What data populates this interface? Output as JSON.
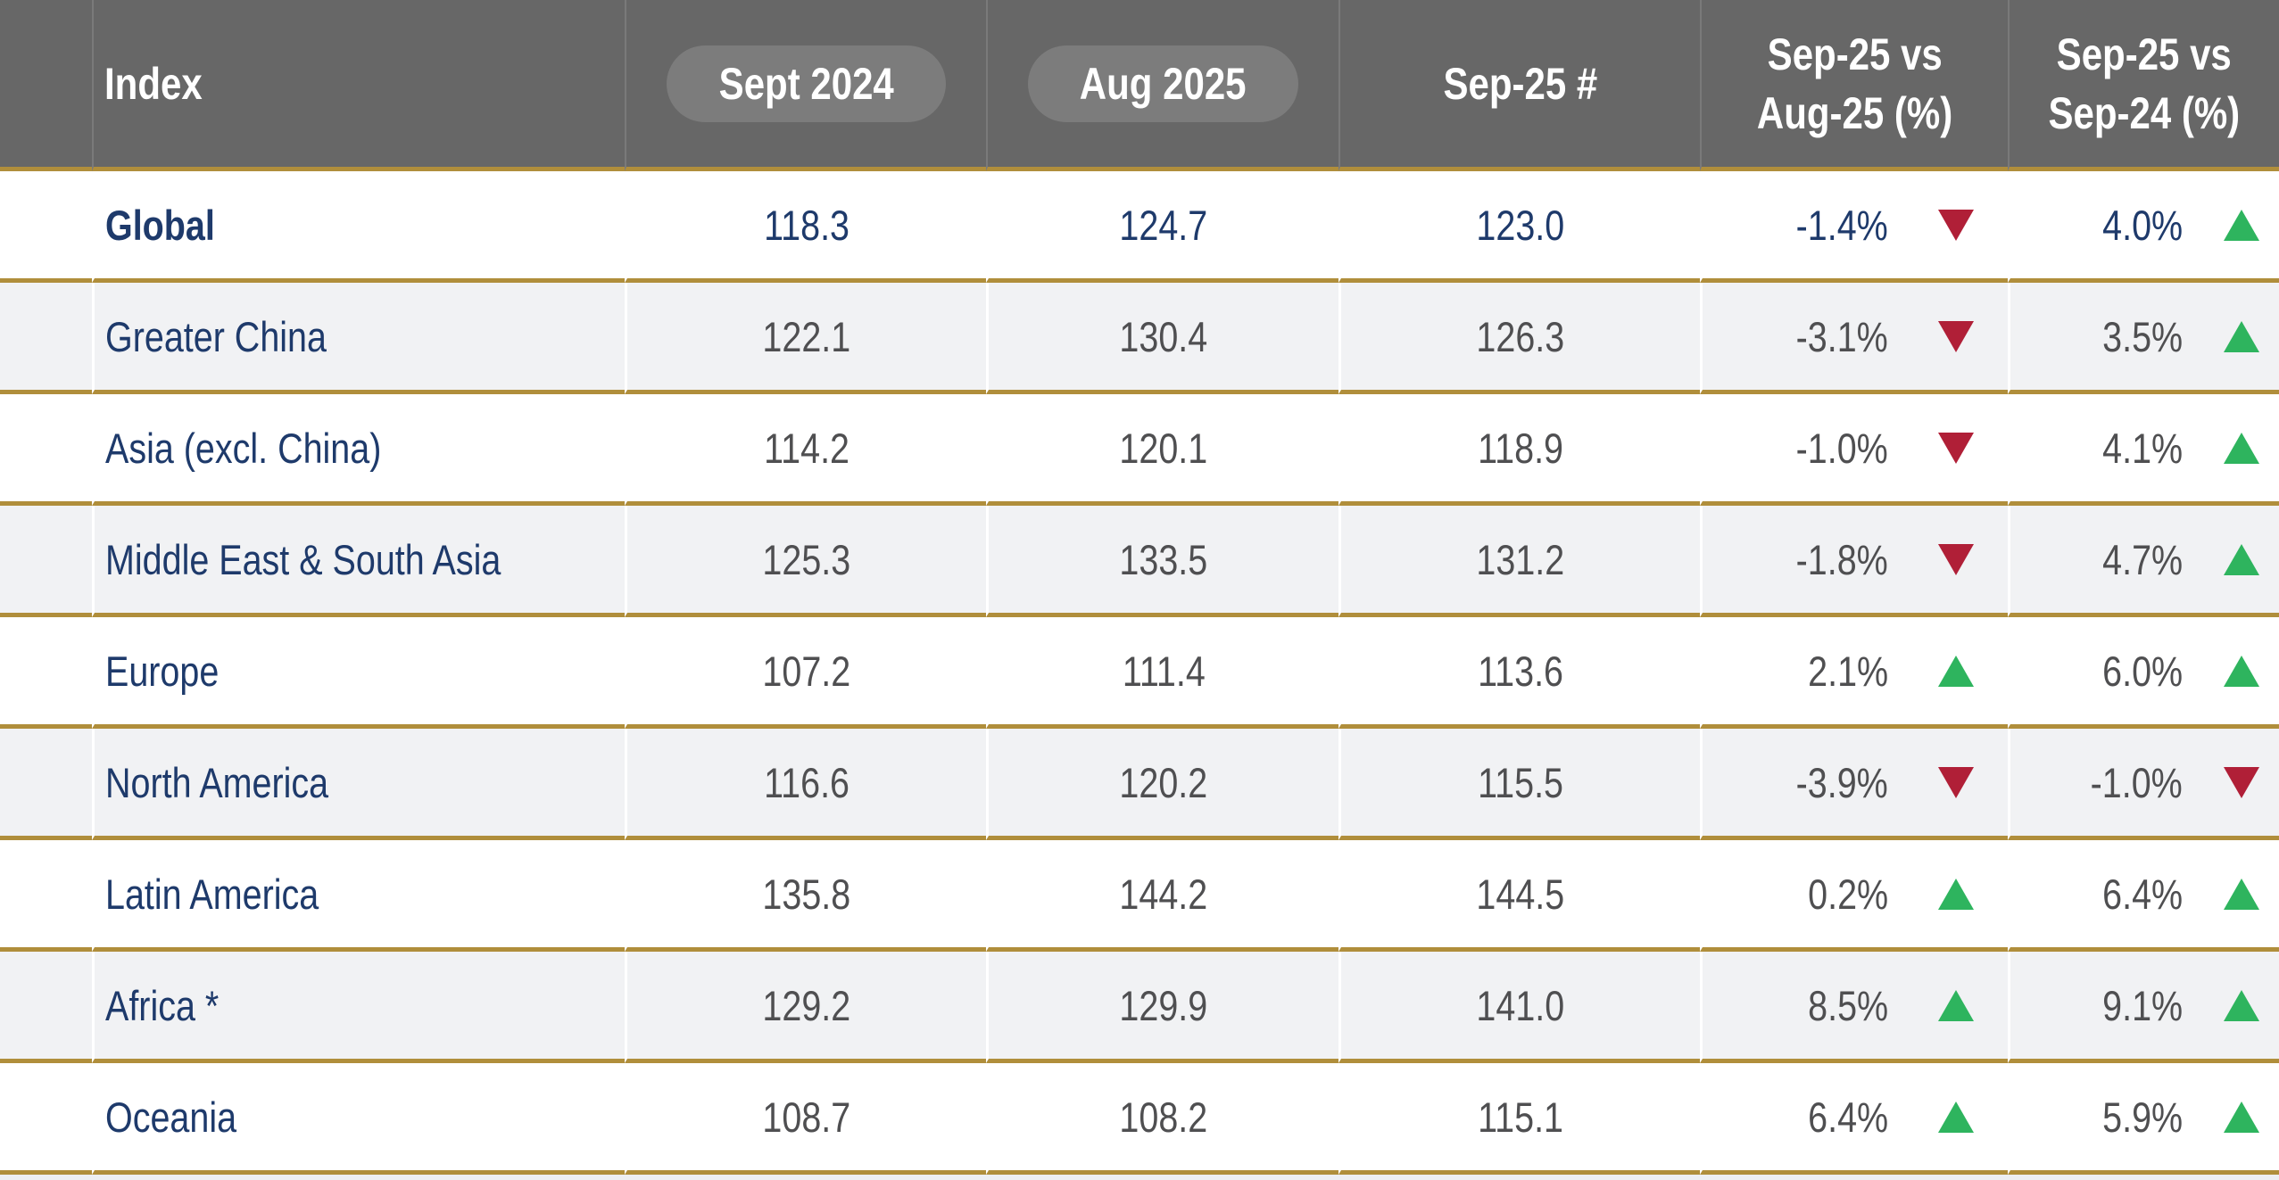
{
  "chart_data": {
    "type": "table",
    "columns": [
      "Index",
      "Sept 2024",
      "Aug 2025",
      "Sep-25 #",
      "Sep-25 vs Aug-25 (%)",
      "Sep-25 vs Sep-24 (%)"
    ],
    "rows": [
      {
        "region": "Global",
        "sept_2024": "118.3",
        "aug_2025": "124.7",
        "sep_25": "123.0",
        "vs_aug_25": "-1.4%",
        "vs_aug_25_dir": "down",
        "vs_sep_24": "4.0%",
        "vs_sep_24_dir": "up",
        "emphasized": true
      },
      {
        "region": "Greater China",
        "sept_2024": "122.1",
        "aug_2025": "130.4",
        "sep_25": "126.3",
        "vs_aug_25": "-3.1%",
        "vs_aug_25_dir": "down",
        "vs_sep_24": "3.5%",
        "vs_sep_24_dir": "up",
        "emphasized": false
      },
      {
        "region": "Asia (excl. China)",
        "sept_2024": "114.2",
        "aug_2025": "120.1",
        "sep_25": "118.9",
        "vs_aug_25": "-1.0%",
        "vs_aug_25_dir": "down",
        "vs_sep_24": "4.1%",
        "vs_sep_24_dir": "up",
        "emphasized": false
      },
      {
        "region": "Middle East & South Asia",
        "sept_2024": "125.3",
        "aug_2025": "133.5",
        "sep_25": "131.2",
        "vs_aug_25": "-1.8%",
        "vs_aug_25_dir": "down",
        "vs_sep_24": "4.7%",
        "vs_sep_24_dir": "up",
        "emphasized": false
      },
      {
        "region": "Europe",
        "sept_2024": "107.2",
        "aug_2025": "111.4",
        "sep_25": "113.6",
        "vs_aug_25": "2.1%",
        "vs_aug_25_dir": "up",
        "vs_sep_24": "6.0%",
        "vs_sep_24_dir": "up",
        "emphasized": false
      },
      {
        "region": "North America",
        "sept_2024": "116.6",
        "aug_2025": "120.2",
        "sep_25": "115.5",
        "vs_aug_25": "-3.9%",
        "vs_aug_25_dir": "down",
        "vs_sep_24": "-1.0%",
        "vs_sep_24_dir": "down",
        "emphasized": false
      },
      {
        "region": "Latin America",
        "sept_2024": "135.8",
        "aug_2025": "144.2",
        "sep_25": "144.5",
        "vs_aug_25": "0.2%",
        "vs_aug_25_dir": "up",
        "vs_sep_24": "6.4%",
        "vs_sep_24_dir": "up",
        "emphasized": false
      },
      {
        "region": "Africa *",
        "sept_2024": "129.2",
        "aug_2025": "129.9",
        "sep_25": "141.0",
        "vs_aug_25": "8.5%",
        "vs_aug_25_dir": "up",
        "vs_sep_24": "9.1%",
        "vs_sep_24_dir": "up",
        "emphasized": false
      },
      {
        "region": "Oceania",
        "sept_2024": "108.7",
        "aug_2025": "108.2",
        "sep_25": "115.1",
        "vs_aug_25": "6.4%",
        "vs_aug_25_dir": "up",
        "vs_sep_24": "5.9%",
        "vs_sep_24_dir": "up",
        "emphasized": false
      }
    ]
  },
  "header": {
    "index": "Index",
    "sept_2024": "Sept 2024",
    "aug_2025": "Aug 2025",
    "sep_25": "Sep-25 #",
    "vs_aug_line1": "Sep-25 vs",
    "vs_aug_line2": "Aug-25 (%)",
    "vs_sep24_line1": "Sep-25 vs",
    "vs_sep24_line2": "Sep-24 (%)"
  },
  "icons": {
    "up": "triangle-up-icon",
    "down": "triangle-down-icon"
  },
  "colors": {
    "gold_border": "#b08e3b",
    "header_background": "#676767",
    "pill_background": "#7c7c7c",
    "navy_text": "#1e3a6b",
    "value_text": "#4f4f51",
    "up_green": "#2eb45e",
    "down_red": "#b01f37",
    "alt_row_background": "#f1f2f4"
  }
}
